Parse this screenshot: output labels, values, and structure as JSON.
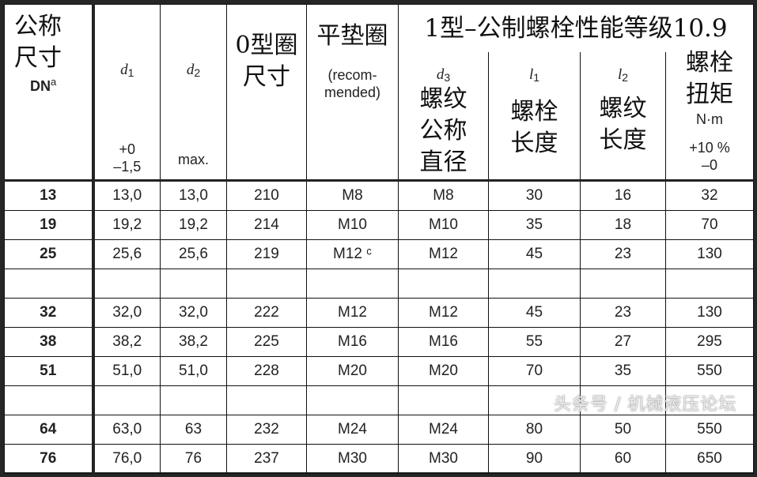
{
  "header": {
    "dn": {
      "zh": [
        "公称",
        "尺寸"
      ],
      "label": "DN",
      "sup": "a"
    },
    "d1": {
      "symbol": "d",
      "sub": "1",
      "tol": [
        "+0",
        "–1,5"
      ]
    },
    "d2": {
      "symbol": "d",
      "sub": "2",
      "note": "max."
    },
    "oring": [
      "0型圈",
      "尺寸"
    ],
    "washer": {
      "zh": "平垫圈",
      "note": [
        "(recom-",
        "mended)"
      ]
    },
    "group_title": "1型–公制螺栓性能等级10.9",
    "d3": {
      "symbol": "d",
      "sub": "3",
      "zh": [
        "螺纹",
        "公称",
        "直径"
      ]
    },
    "l1": {
      "symbol": "l",
      "sub": "1",
      "zh": [
        "螺栓",
        "长度"
      ]
    },
    "l2": {
      "symbol": "l",
      "sub": "2",
      "zh": [
        "螺纹",
        "长度"
      ]
    },
    "torque": {
      "zh": [
        "螺栓",
        "扭矩"
      ],
      "unit": "N·m",
      "tol": [
        "+10 %",
        "–0"
      ]
    }
  },
  "rows": [
    [
      "13",
      "13,0",
      "13,0",
      "210",
      "M8",
      "M8",
      "30",
      "16",
      "32"
    ],
    [
      "19",
      "19,2",
      "19,2",
      "214",
      "M10",
      "M10",
      "35",
      "18",
      "70"
    ],
    [
      "25",
      "25,6",
      "25,6",
      "219",
      "M12 ᶜ",
      "M12",
      "45",
      "23",
      "130"
    ],
    [
      "",
      "",
      "",
      "",
      "",
      "",
      "",
      "",
      ""
    ],
    [
      "32",
      "32,0",
      "32,0",
      "222",
      "M12",
      "M12",
      "45",
      "23",
      "130"
    ],
    [
      "38",
      "38,2",
      "38,2",
      "225",
      "M16",
      "M16",
      "55",
      "27",
      "295"
    ],
    [
      "51",
      "51,0",
      "51,0",
      "228",
      "M20",
      "M20",
      "70",
      "35",
      "550"
    ],
    [
      "",
      "",
      "",
      "",
      "",
      "",
      "",
      "",
      ""
    ],
    [
      "64",
      "63,0",
      "63",
      "232",
      "M24",
      "M24",
      "80",
      "50",
      "550"
    ],
    [
      "76",
      "76,0",
      "76",
      "237",
      "M30",
      "M30",
      "90",
      "60",
      "650"
    ]
  ],
  "watermark": "头条号 / 机械液压论坛",
  "colors": {
    "border": "#262626",
    "text": "#222222"
  }
}
